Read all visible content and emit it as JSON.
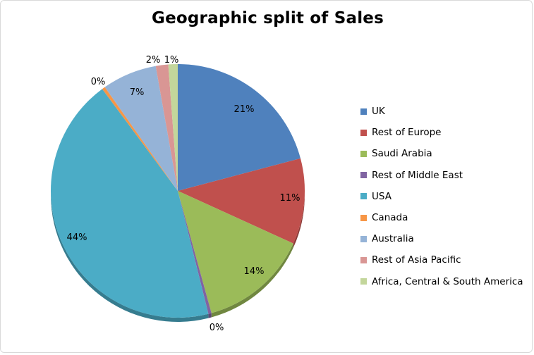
{
  "chart_data": {
    "type": "pie",
    "title": "Geographic split of Sales",
    "legend_position": "right",
    "slices": [
      {
        "label": "UK",
        "value": 21,
        "data_label": "21%",
        "color": "#4f81bd"
      },
      {
        "label": "Rest of Europe",
        "value": 11,
        "data_label": "11%",
        "color": "#c0504d"
      },
      {
        "label": "Saudi Arabia",
        "value": 14,
        "data_label": "14%",
        "color": "#9bbb59"
      },
      {
        "label": "Rest of Middle East",
        "value": 0.4,
        "data_label": "0%",
        "color": "#8064a2"
      },
      {
        "label": "USA",
        "value": 44,
        "data_label": "44%",
        "color": "#4bacc6"
      },
      {
        "label": "Canada",
        "value": 0.4,
        "data_label": "0%",
        "color": "#f79646"
      },
      {
        "label": "Australia",
        "value": 7,
        "data_label": "7%",
        "color": "#95b3d7"
      },
      {
        "label": "Rest of Asia Pacific",
        "value": 1.6,
        "data_label": "2%",
        "color": "#d99694"
      },
      {
        "label": "Africa, Central & South America",
        "value": 1.2,
        "data_label": "1%",
        "color": "#c3d69b"
      }
    ]
  }
}
